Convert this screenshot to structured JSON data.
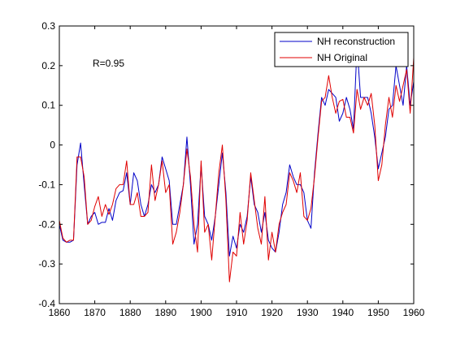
{
  "chart_data": {
    "type": "line",
    "title": "",
    "xlabel": "",
    "ylabel": "",
    "xlim": [
      1860,
      1960
    ],
    "ylim": [
      -0.4,
      0.3
    ],
    "x_ticks": [
      1860,
      1870,
      1880,
      1890,
      1900,
      1910,
      1920,
      1930,
      1940,
      1950,
      1960
    ],
    "y_ticks": [
      -0.4,
      -0.3,
      -0.2,
      -0.1,
      0,
      0.1,
      0.2,
      0.3
    ],
    "x_tick_labels": [
      "1860",
      "1870",
      "1880",
      "1890",
      "1900",
      "1910",
      "1920",
      "1930",
      "1940",
      "1950",
      "1960"
    ],
    "y_tick_labels": [
      "-0.4",
      "-0.3",
      "-0.2",
      "-0.1",
      "0",
      "0.1",
      "0.2",
      "0.3"
    ],
    "grid": false,
    "legend_position": "top-right",
    "annotation": "R=0.95",
    "x": [
      1860,
      1861,
      1862,
      1863,
      1864,
      1865,
      1866,
      1867,
      1868,
      1869,
      1870,
      1871,
      1872,
      1873,
      1874,
      1875,
      1876,
      1877,
      1878,
      1879,
      1880,
      1881,
      1882,
      1883,
      1884,
      1885,
      1886,
      1887,
      1888,
      1889,
      1890,
      1891,
      1892,
      1893,
      1894,
      1895,
      1896,
      1897,
      1898,
      1899,
      1900,
      1901,
      1902,
      1903,
      1904,
      1905,
      1906,
      1907,
      1908,
      1909,
      1910,
      1911,
      1912,
      1913,
      1914,
      1915,
      1916,
      1917,
      1918,
      1919,
      1920,
      1921,
      1922,
      1923,
      1924,
      1925,
      1926,
      1927,
      1928,
      1929,
      1930,
      1931,
      1932,
      1933,
      1934,
      1935,
      1936,
      1937,
      1938,
      1939,
      1940,
      1941,
      1942,
      1943,
      1944,
      1945,
      1946,
      1947,
      1948,
      1949,
      1950,
      1951,
      1952,
      1953,
      1954,
      1955,
      1956,
      1957,
      1958,
      1959,
      1960
    ],
    "series": [
      {
        "name": "NH reconstruction",
        "color": "#0000c8",
        "values": [
          -0.2,
          -0.24,
          -0.245,
          -0.245,
          -0.24,
          -0.05,
          0.005,
          -0.1,
          -0.2,
          -0.18,
          -0.17,
          -0.2,
          -0.195,
          -0.195,
          -0.16,
          -0.19,
          -0.14,
          -0.12,
          -0.115,
          -0.07,
          -0.15,
          -0.07,
          -0.09,
          -0.15,
          -0.18,
          -0.15,
          -0.1,
          -0.12,
          -0.1,
          -0.03,
          -0.06,
          -0.09,
          -0.2,
          -0.2,
          -0.15,
          -0.1,
          0.02,
          -0.1,
          -0.25,
          -0.2,
          -0.05,
          -0.18,
          -0.2,
          -0.24,
          -0.18,
          -0.1,
          -0.02,
          -0.12,
          -0.28,
          -0.23,
          -0.26,
          -0.2,
          -0.22,
          -0.18,
          -0.08,
          -0.15,
          -0.17,
          -0.22,
          -0.17,
          -0.24,
          -0.26,
          -0.27,
          -0.22,
          -0.15,
          -0.12,
          -0.05,
          -0.08,
          -0.1,
          -0.1,
          -0.12,
          -0.19,
          -0.21,
          -0.07,
          0.03,
          0.12,
          0.1,
          0.14,
          0.13,
          0.12,
          0.06,
          0.08,
          0.12,
          0.09,
          0.04,
          0.25,
          0.12,
          0.12,
          0.12,
          0.08,
          0.02,
          -0.06,
          -0.02,
          0.02,
          0.09,
          0.1,
          0.2,
          0.15,
          0.1,
          0.2,
          0.1,
          0.16
        ]
      },
      {
        "name": "NH Original",
        "color": "#e00000",
        "values": [
          -0.19,
          -0.235,
          -0.245,
          -0.24,
          -0.24,
          -0.03,
          -0.03,
          -0.08,
          -0.2,
          -0.19,
          -0.155,
          -0.13,
          -0.18,
          -0.15,
          -0.175,
          -0.15,
          -0.11,
          -0.1,
          -0.1,
          -0.04,
          -0.15,
          -0.15,
          -0.12,
          -0.18,
          -0.18,
          -0.17,
          -0.05,
          -0.14,
          -0.1,
          -0.04,
          -0.12,
          -0.1,
          -0.25,
          -0.22,
          -0.17,
          -0.1,
          -0.01,
          -0.08,
          -0.2,
          -0.27,
          -0.04,
          -0.22,
          -0.2,
          -0.29,
          -0.18,
          -0.07,
          0.0,
          -0.14,
          -0.345,
          -0.27,
          -0.28,
          -0.17,
          -0.25,
          -0.19,
          -0.07,
          -0.14,
          -0.21,
          -0.25,
          -0.13,
          -0.29,
          -0.22,
          -0.27,
          -0.2,
          -0.17,
          -0.15,
          -0.07,
          -0.09,
          -0.12,
          -0.07,
          -0.18,
          -0.19,
          -0.16,
          -0.08,
          0.02,
          0.11,
          0.12,
          0.175,
          0.12,
          0.08,
          0.11,
          0.115,
          0.07,
          0.07,
          0.03,
          0.14,
          0.09,
          0.12,
          0.1,
          0.13,
          0.05,
          -0.09,
          -0.05,
          0.05,
          0.12,
          0.07,
          0.15,
          0.11,
          0.15,
          0.19,
          0.08,
          0.22
        ]
      }
    ]
  }
}
